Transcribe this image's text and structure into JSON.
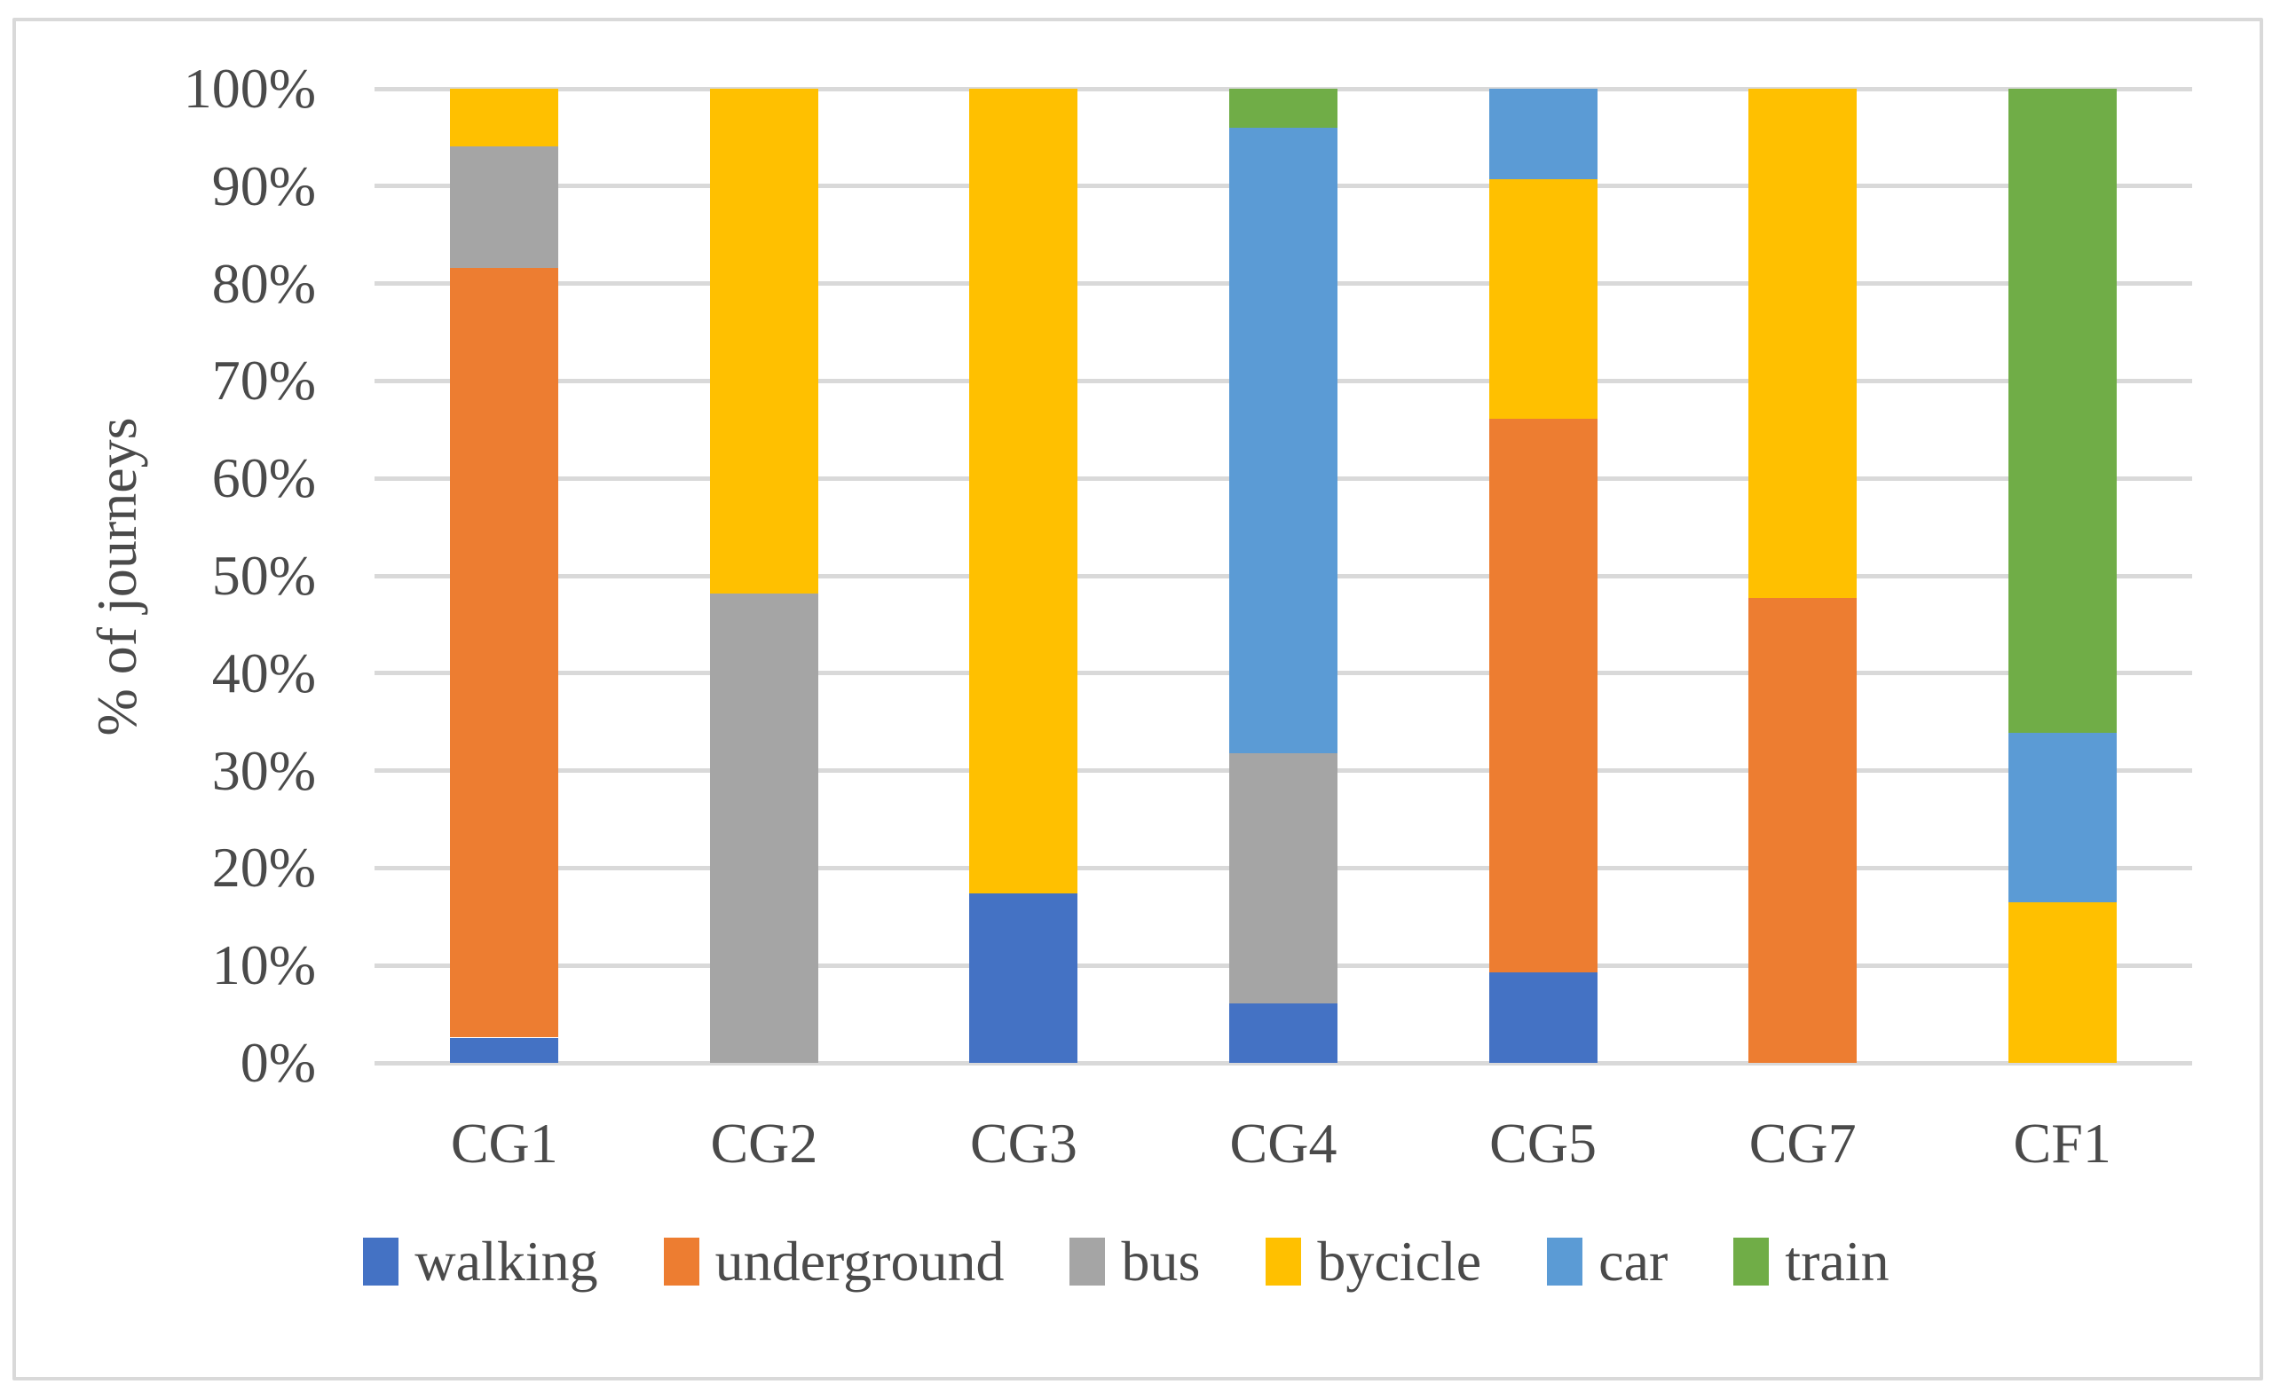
{
  "figure": {
    "kind": "stacked-bar-chart-figure",
    "border_color": "#D9D9D9",
    "background": "#FFFFFF"
  },
  "chart_data": {
    "type": "bar",
    "stacked": true,
    "units": "percent",
    "title": "",
    "xlabel": "",
    "ylabel": "% of journeys",
    "ylim": [
      0,
      100
    ],
    "ytick_step": 10,
    "ytick_labels": [
      "0%",
      "10%",
      "20%",
      "30%",
      "40%",
      "50%",
      "60%",
      "70%",
      "80%",
      "90%",
      "100%"
    ],
    "grid": "horizontal",
    "grid_color": "#D9D9D9",
    "text_color": "#4A4A4A",
    "legend_position": "bottom",
    "categories": [
      "CG1",
      "CG2",
      "CG3",
      "CG4",
      "CG5",
      "CG7",
      "CF1"
    ],
    "series": [
      {
        "name": "walking",
        "color": "#4472C4",
        "values": [
          2.6,
          0,
          17.4,
          6.1,
          9.3,
          0,
          0
        ]
      },
      {
        "name": "underground",
        "color": "#ED7D31",
        "values": [
          79.0,
          0,
          0,
          0,
          56.8,
          47.7,
          0
        ]
      },
      {
        "name": "bus",
        "color": "#A5A5A5",
        "values": [
          12.5,
          48.2,
          0,
          25.7,
          0,
          0,
          0
        ]
      },
      {
        "name": "bycicle",
        "color": "#FFC000",
        "values": [
          5.9,
          51.8,
          82.6,
          0,
          24.6,
          52.3,
          16.5
        ]
      },
      {
        "name": "car",
        "color": "#5B9BD5",
        "values": [
          0,
          0,
          0,
          64.2,
          9.3,
          0,
          17.4
        ]
      },
      {
        "name": "train",
        "color": "#70AD47",
        "values": [
          0,
          0,
          0,
          4.0,
          0,
          0,
          66.1
        ]
      }
    ]
  }
}
